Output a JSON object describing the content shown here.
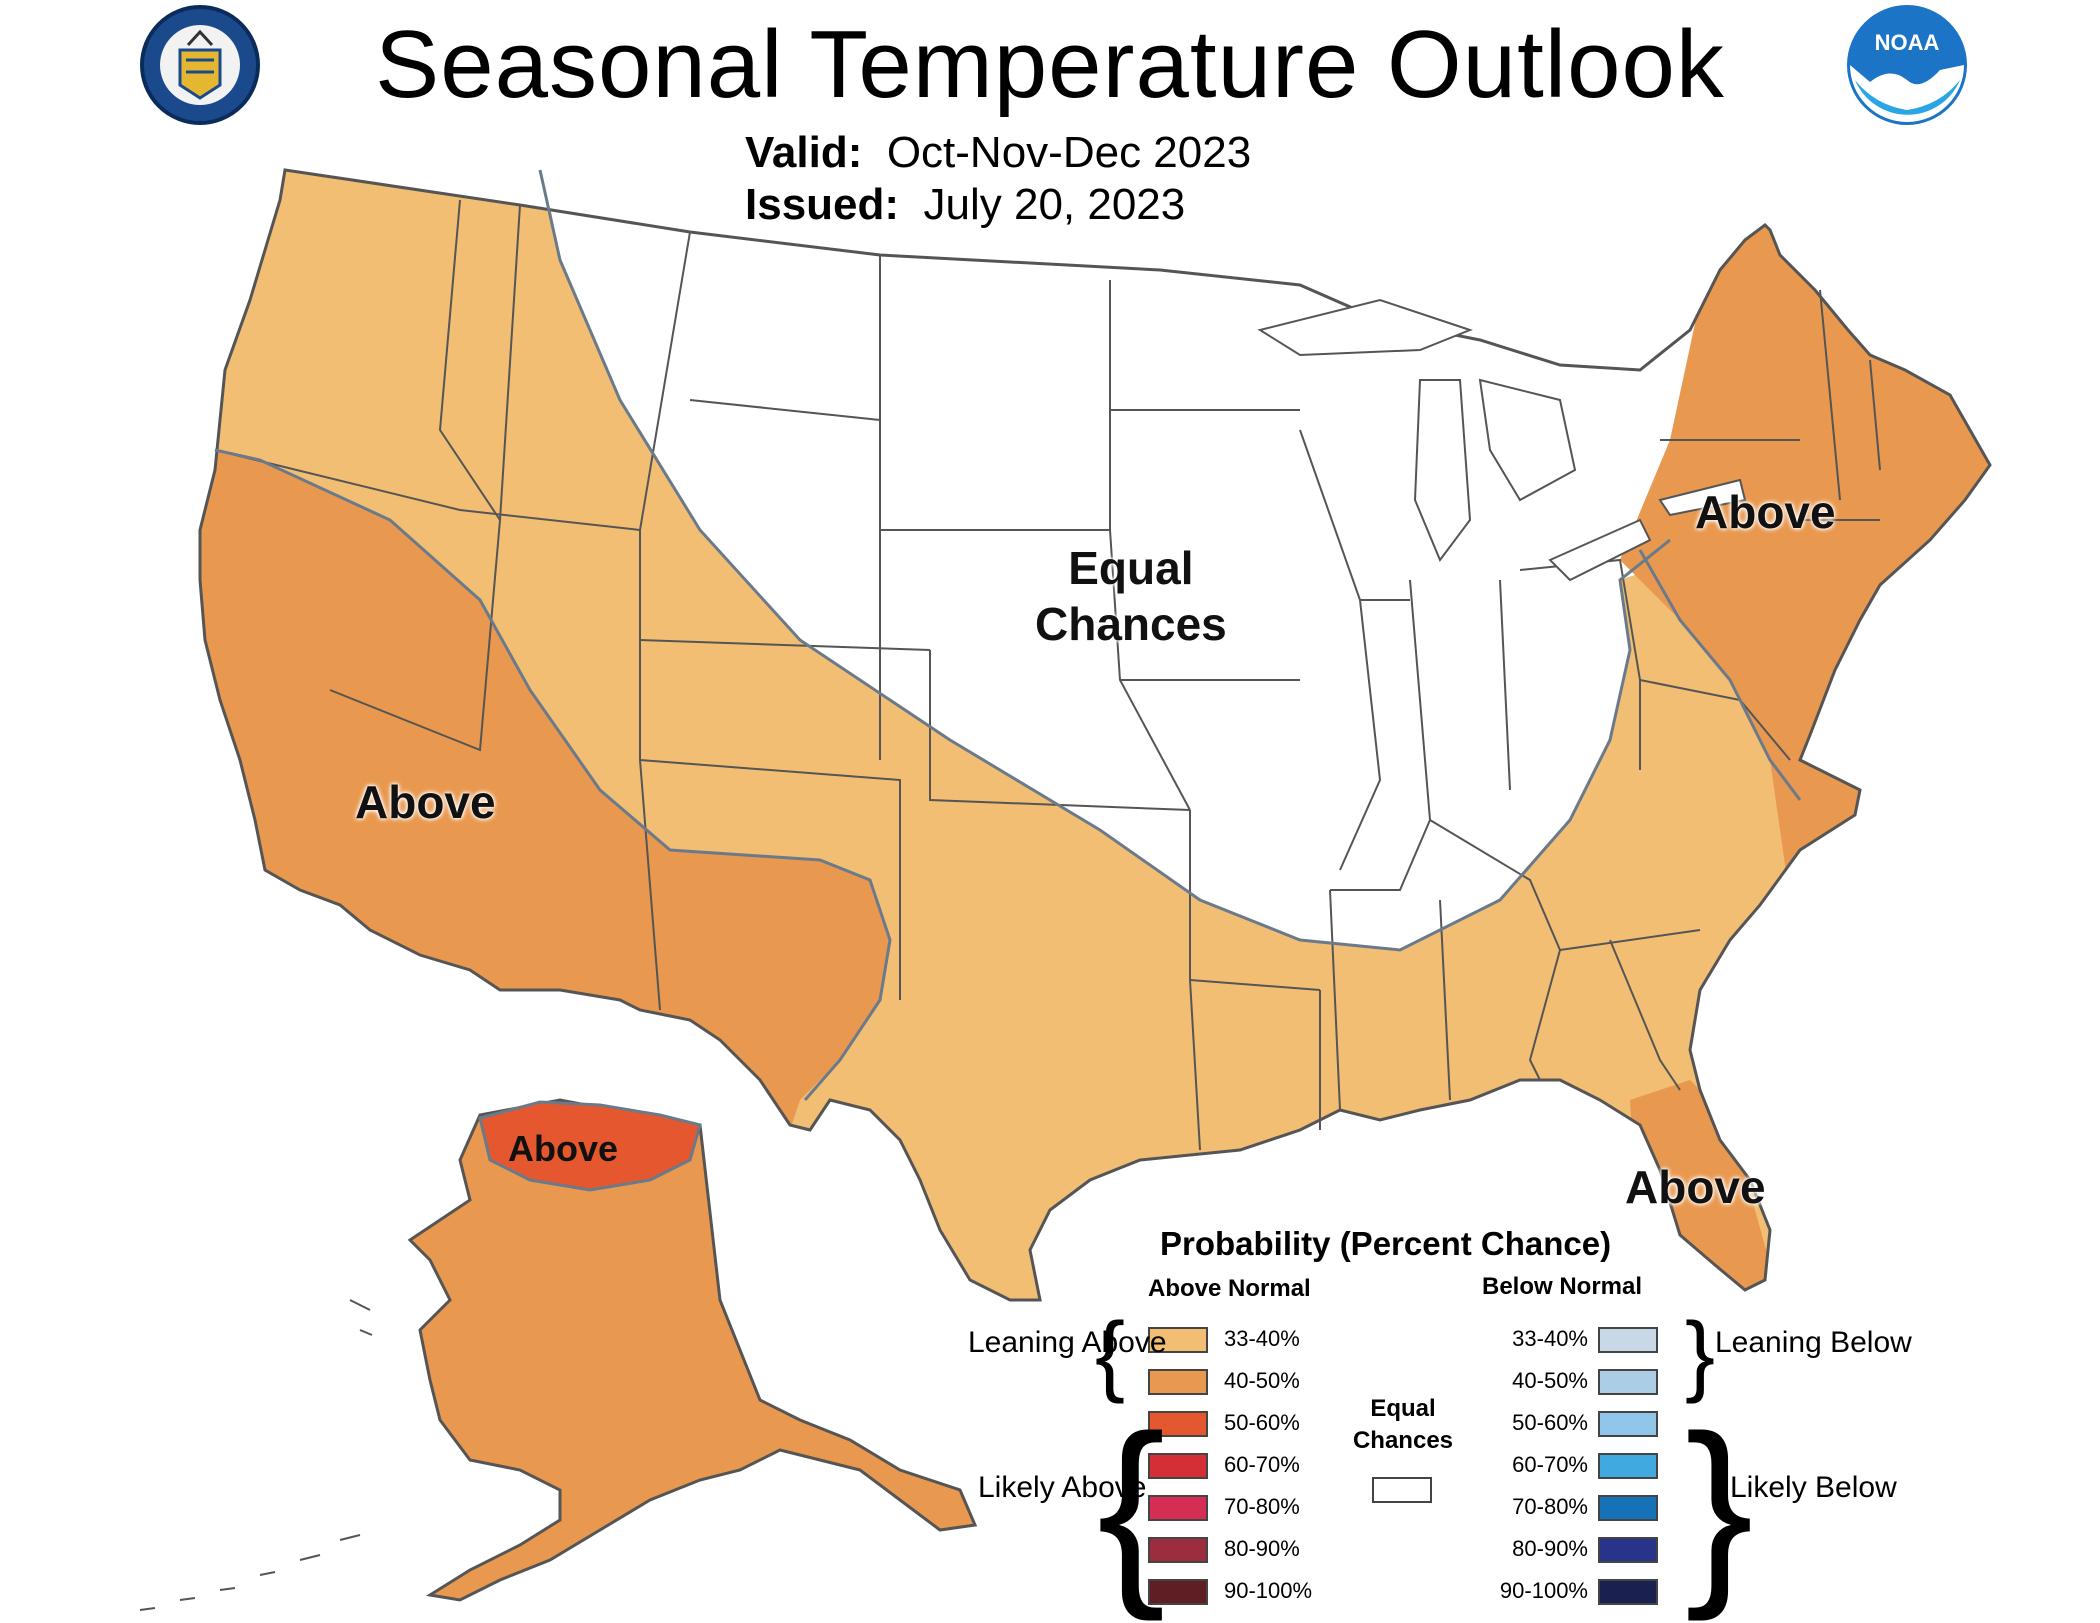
{
  "header": {
    "title": "Seasonal Temperature Outlook",
    "valid_label": "Valid:",
    "valid_value": "Oct-Nov-Dec 2023",
    "issued_label": "Issued:",
    "issued_value": "July 20, 2023"
  },
  "logos": {
    "left_logo": "department-of-commerce-seal",
    "right_logo": "noaa-logo",
    "right_logo_text": "NOAA"
  },
  "map": {
    "colors": {
      "leaning_above": "#F1BE74",
      "above_40_50": "#E9984F",
      "above_50_60": "#E4572F",
      "equal_chances": "#FFFFFF",
      "border": "#555555"
    },
    "regions": {
      "equal_chances_line1": "Equal",
      "equal_chances_line2": "Chances",
      "above_west": "Above",
      "above_northeast": "Above",
      "above_florida": "Above",
      "above_alaska": "Above"
    }
  },
  "legend": {
    "title": "Probability (Percent Chance)",
    "above_header": "Above Normal",
    "below_header": "Below Normal",
    "leaning_above": "Leaning Above",
    "likely_above": "Likely Above",
    "leaning_below": "Leaning Below",
    "likely_below": "Likely Below",
    "equal_chances": "Equal Chances",
    "above_items": [
      {
        "label": "33-40%",
        "color": "#F1BE74"
      },
      {
        "label": "40-50%",
        "color": "#E9984F"
      },
      {
        "label": "50-60%",
        "color": "#E4572F"
      },
      {
        "label": "60-70%",
        "color": "#D42E36"
      },
      {
        "label": "70-80%",
        "color": "#D62D54"
      },
      {
        "label": "80-90%",
        "color": "#9B2D3E"
      },
      {
        "label": "90-100%",
        "color": "#5E1E24"
      }
    ],
    "below_items": [
      {
        "label": "33-40%",
        "color": "#C8D8E6"
      },
      {
        "label": "40-50%",
        "color": "#ABCDE6"
      },
      {
        "label": "50-60%",
        "color": "#92C5EA"
      },
      {
        "label": "60-70%",
        "color": "#3FA9E0"
      },
      {
        "label": "70-80%",
        "color": "#1672B6"
      },
      {
        "label": "80-90%",
        "color": "#28338A"
      },
      {
        "label": "90-100%",
        "color": "#1A2150"
      }
    ]
  }
}
